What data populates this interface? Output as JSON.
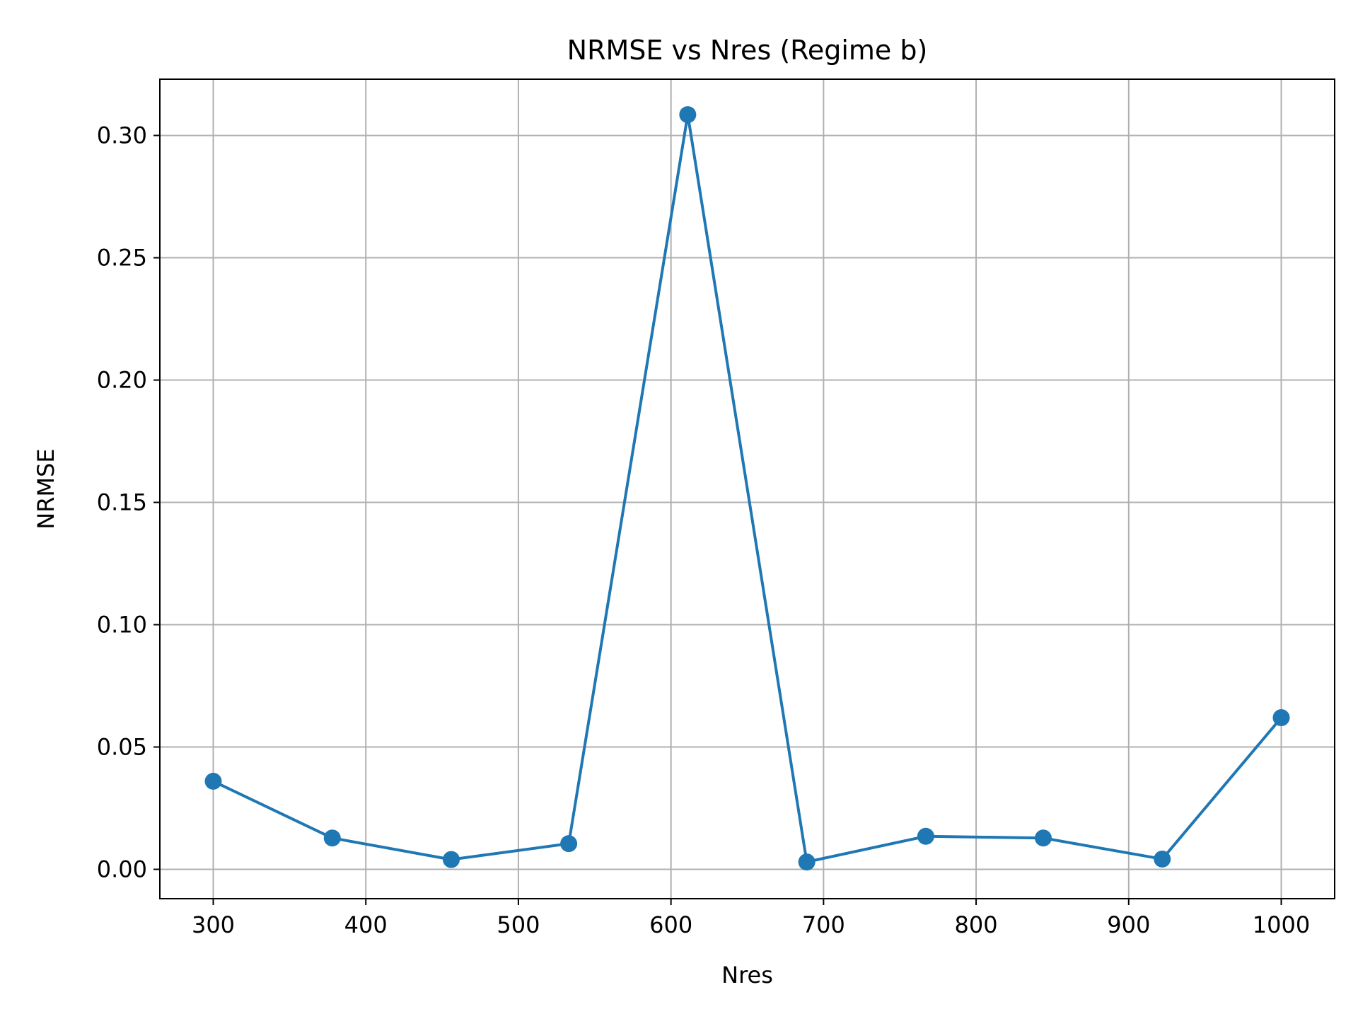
{
  "chart_data": {
    "type": "line",
    "title": "NRMSE vs Nres (Regime b)",
    "xlabel": "Nres",
    "ylabel": "NRMSE",
    "xlim": [
      265,
      1035
    ],
    "ylim": [
      -0.012,
      0.323
    ],
    "xticks": [
      300,
      400,
      500,
      600,
      700,
      800,
      900,
      1000
    ],
    "xtick_labels": [
      "300",
      "400",
      "500",
      "600",
      "700",
      "800",
      "900",
      "1000"
    ],
    "yticks": [
      0.0,
      0.05,
      0.1,
      0.15,
      0.2,
      0.25,
      0.3
    ],
    "ytick_labels": [
      "0.00",
      "0.05",
      "0.10",
      "0.15",
      "0.20",
      "0.25",
      "0.30"
    ],
    "grid": true,
    "series": [
      {
        "color": "#1f77b4",
        "marker": "circle",
        "x": [
          300,
          378,
          456,
          533,
          611,
          689,
          767,
          844,
          922,
          1000
        ],
        "y": [
          0.036,
          0.0128,
          0.004,
          0.0105,
          0.3085,
          0.003,
          0.0135,
          0.0128,
          0.0042,
          0.062
        ]
      }
    ]
  }
}
